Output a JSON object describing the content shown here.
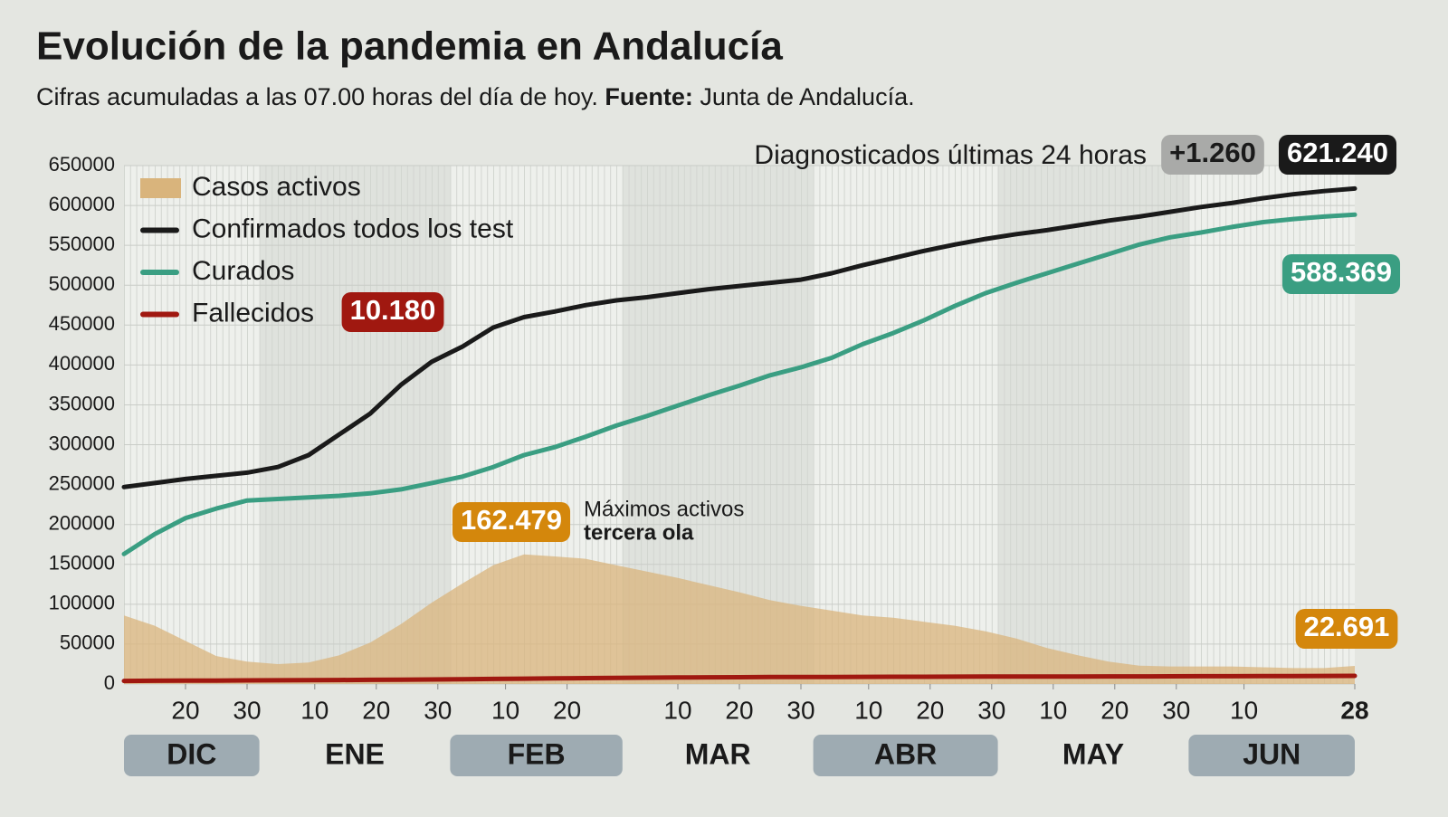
{
  "chart_data": {
    "type": "line",
    "title": "Evolución de la pandemia en Andalucía",
    "subtitle": "Cifras acumuladas a las 07.00 horas del día de hoy.",
    "source_label": "Fuente:",
    "source": "Junta de Andalucía.",
    "annotations": {
      "daily_text": "Diagnosticados últimas 24 horas",
      "daily_label": "+1.260",
      "peak_text": "Máximos activos",
      "peak_text_bold": "tercera ola"
    },
    "legend": "upper left",
    "grid": true,
    "x": [
      "12-10",
      "12-15",
      "12-20",
      "12-25",
      "12-30",
      "01-04",
      "01-09",
      "01-14",
      "01-19",
      "01-24",
      "01-29",
      "02-03",
      "02-08",
      "02-13",
      "02-18",
      "02-23",
      "02-28",
      "03-05",
      "03-10",
      "03-15",
      "03-20",
      "03-25",
      "03-30",
      "04-04",
      "04-09",
      "04-14",
      "04-19",
      "04-24",
      "04-29",
      "05-04",
      "05-09",
      "05-14",
      "05-19",
      "05-24",
      "05-29",
      "06-03",
      "06-08",
      "06-13",
      "06-18",
      "06-23",
      "06-28"
    ],
    "xlim": [
      "12-10",
      "06-28"
    ],
    "xticks": [
      {
        "value": "12-20",
        "label": "20"
      },
      {
        "value": "12-30",
        "label": "30"
      },
      {
        "value": "01-10",
        "label": "10"
      },
      {
        "value": "01-20",
        "label": "20"
      },
      {
        "value": "01-30",
        "label": "30"
      },
      {
        "value": "02-10",
        "label": "10"
      },
      {
        "value": "02-20",
        "label": "20"
      },
      {
        "value": "03-10",
        "label": "10"
      },
      {
        "value": "03-20",
        "label": "20"
      },
      {
        "value": "03-30",
        "label": "30"
      },
      {
        "value": "04-10",
        "label": "10"
      },
      {
        "value": "04-20",
        "label": "20"
      },
      {
        "value": "04-30",
        "label": "30"
      },
      {
        "value": "05-10",
        "label": "10"
      },
      {
        "value": "05-20",
        "label": "20"
      },
      {
        "value": "05-30",
        "label": "30"
      },
      {
        "value": "06-10",
        "label": "10"
      },
      {
        "value": "06-28",
        "label": "28"
      }
    ],
    "months": [
      "DIC",
      "ENE",
      "FEB",
      "MAR",
      "ABR",
      "MAY",
      "JUN"
    ],
    "ylim": [
      0,
      650000
    ],
    "yticks": [
      0,
      50000,
      100000,
      150000,
      200000,
      250000,
      300000,
      350000,
      400000,
      450000,
      500000,
      550000,
      600000,
      650000
    ],
    "series": [
      {
        "name": "Casos activos",
        "kind": "area",
        "color": "#d9b47c",
        "label_color": "#d4870c",
        "values": [
          86000,
          73000,
          54000,
          35000,
          28000,
          25000,
          27000,
          36000,
          52000,
          75000,
          102000,
          126000,
          149000,
          162479,
          160000,
          157000,
          149000,
          141000,
          133000,
          124000,
          115000,
          105000,
          98000,
          92000,
          86000,
          83000,
          78000,
          73000,
          66000,
          57000,
          45000,
          36000,
          28000,
          23000,
          22000,
          22000,
          22000,
          21000,
          20000,
          20000,
          22691
        ],
        "value_labels": [
          null,
          null,
          null,
          null,
          null,
          null,
          null,
          null,
          null,
          null,
          null,
          null,
          null,
          "162.479",
          null,
          null,
          null,
          null,
          null,
          null,
          null,
          null,
          null,
          null,
          null,
          null,
          null,
          null,
          null,
          null,
          null,
          null,
          null,
          null,
          null,
          null,
          null,
          null,
          null,
          null,
          "22.691"
        ]
      },
      {
        "name": "Confirmados todos los test",
        "kind": "line",
        "color": "#1a1a1a",
        "label_color": "#1a1a1a",
        "values": [
          247000,
          252000,
          257000,
          261000,
          265000,
          272000,
          287000,
          313000,
          339000,
          375000,
          404000,
          423000,
          447000,
          460000,
          467000,
          475000,
          481000,
          485000,
          490000,
          495000,
          499000,
          503000,
          507000,
          515000,
          525000,
          534000,
          543000,
          551000,
          558000,
          564000,
          569000,
          575000,
          581000,
          586000,
          592000,
          598000,
          603000,
          609000,
          614000,
          618000,
          621240
        ],
        "value_labels": [
          null,
          null,
          null,
          null,
          null,
          null,
          null,
          null,
          null,
          null,
          null,
          null,
          null,
          null,
          null,
          null,
          null,
          null,
          null,
          null,
          null,
          null,
          null,
          null,
          null,
          null,
          null,
          null,
          null,
          null,
          null,
          null,
          null,
          null,
          null,
          null,
          null,
          null,
          null,
          null,
          "621.240"
        ]
      },
      {
        "name": "Curados",
        "kind": "line",
        "color": "#3a9e82",
        "label_color": "#3a9e82",
        "values": [
          163000,
          188000,
          208000,
          220000,
          230000,
          232000,
          234000,
          236000,
          239000,
          244000,
          252000,
          260000,
          272000,
          287000,
          297000,
          310000,
          324000,
          336000,
          349000,
          362000,
          374000,
          387000,
          397000,
          409000,
          426000,
          440000,
          456000,
          474000,
          490000,
          503000,
          515000,
          527000,
          539000,
          551000,
          560000,
          566000,
          573000,
          579000,
          583000,
          586000,
          588369
        ],
        "value_labels": [
          null,
          null,
          null,
          null,
          null,
          null,
          null,
          null,
          null,
          null,
          null,
          null,
          null,
          null,
          null,
          null,
          null,
          null,
          null,
          null,
          null,
          null,
          null,
          null,
          null,
          null,
          null,
          null,
          null,
          null,
          null,
          null,
          null,
          null,
          null,
          null,
          null,
          null,
          null,
          null,
          "588.369"
        ]
      },
      {
        "name": "Fallecidos",
        "kind": "line",
        "color": "#a01810",
        "label_color": "#a01810",
        "values": [
          3900,
          4050,
          4200,
          4350,
          4500,
          4650,
          4800,
          5000,
          5200,
          5450,
          5700,
          6000,
          6300,
          6650,
          7000,
          7350,
          7650,
          7950,
          8200,
          8400,
          8550,
          8700,
          8800,
          8900,
          8980,
          9050,
          9120,
          9200,
          9260,
          9320,
          9380,
          9440,
          9500,
          9560,
          9620,
          9700,
          9780,
          9870,
          9960,
          10060,
          10180
        ],
        "value_labels": [
          null,
          null,
          null,
          null,
          null,
          null,
          null,
          null,
          null,
          null,
          null,
          null,
          null,
          null,
          null,
          null,
          null,
          null,
          null,
          null,
          null,
          null,
          null,
          null,
          null,
          null,
          null,
          null,
          null,
          null,
          null,
          null,
          null,
          null,
          null,
          null,
          null,
          null,
          null,
          null,
          "10.180"
        ]
      }
    ]
  }
}
